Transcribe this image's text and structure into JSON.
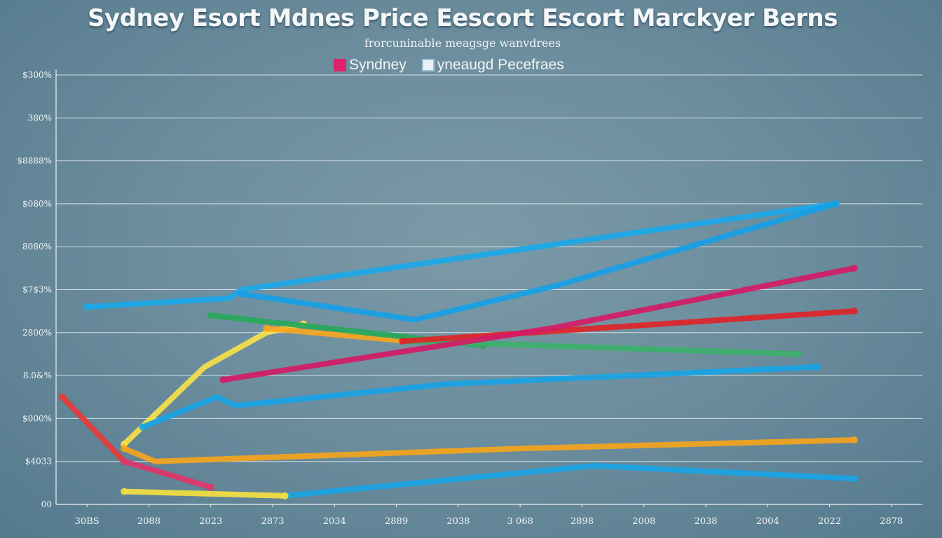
{
  "chart_data": {
    "type": "line",
    "title": "Sydney Esort Mdnes Price Eescort Escort Marckyer Berns",
    "subtitle": "frorcuninable meagsge wanvdrees",
    "xlabel": "",
    "ylabel": "",
    "legend": [
      {
        "name": "Syndney",
        "color": "#e0226a"
      },
      {
        "name": "yneaugd Pecefraes",
        "color": "#e8f1f8"
      }
    ],
    "legend_position": "top-center",
    "grid": true,
    "y_ticks": [
      "00",
      "$4033",
      "$000%",
      "8.0&%",
      "2800%",
      "$7$3%",
      "8080%",
      "$080%",
      "$8888%",
      "380%",
      "$300%"
    ],
    "x_ticks": [
      "30BS",
      "2088",
      "2023",
      "2873",
      "2034",
      "2889",
      "2038",
      "3 068",
      "2898",
      "2008",
      "2038",
      "2004",
      "2022",
      "2878"
    ],
    "ylim": [
      0,
      10
    ],
    "xlim": [
      0,
      14
    ],
    "series": [
      {
        "color": "#1aa8e8",
        "x": [
          0.5,
          2.8,
          3.0,
          12.6
        ],
        "y": [
          4.6,
          4.8,
          5.0,
          7.0
        ]
      },
      {
        "color": "#16a0e6",
        "x": [
          3.0,
          5.8,
          8.1,
          12.6
        ],
        "y": [
          4.9,
          4.3,
          5.1,
          7.0
        ]
      },
      {
        "color": "#f6e14a",
        "x": [
          1.1,
          2.4,
          3.4,
          4.0
        ],
        "y": [
          1.4,
          3.2,
          4.0,
          4.2
        ]
      },
      {
        "color": "#f7a51f",
        "x": [
          3.4,
          5.7
        ],
        "y": [
          4.1,
          3.8
        ]
      },
      {
        "color": "#27a85a",
        "x": [
          2.5,
          6.9
        ],
        "y": [
          4.4,
          3.7
        ]
      },
      {
        "color": "#3bb06a",
        "x": [
          5.7,
          12.0
        ],
        "y": [
          3.8,
          3.5
        ]
      },
      {
        "color": "#e02428",
        "x": [
          5.6,
          12.9
        ],
        "y": [
          3.8,
          4.5
        ]
      },
      {
        "color": "#d41b66",
        "x": [
          2.7,
          8.0,
          12.9
        ],
        "y": [
          2.9,
          4.1,
          5.5
        ]
      },
      {
        "color": "#18a3e5",
        "x": [
          1.4,
          2.6,
          2.9,
          6.3,
          12.3
        ],
        "y": [
          1.8,
          2.5,
          2.3,
          2.8,
          3.2
        ]
      },
      {
        "color": "#f4a41c",
        "x": [
          1.1,
          1.6,
          7.5,
          12.9
        ],
        "y": [
          1.3,
          1.0,
          1.3,
          1.5
        ]
      },
      {
        "color": "#19a4e4",
        "x": [
          3.7,
          8.7,
          12.9
        ],
        "y": [
          0.2,
          0.9,
          0.6
        ]
      },
      {
        "color": "#e83838",
        "x": [
          0.1,
          1.1
        ],
        "y": [
          2.5,
          1.0
        ]
      },
      {
        "color": "#e0366a",
        "x": [
          1.1,
          2.5
        ],
        "y": [
          1.0,
          0.4
        ]
      },
      {
        "color": "#f4e040",
        "x": [
          1.1,
          3.7
        ],
        "y": [
          0.3,
          0.2
        ]
      }
    ]
  }
}
